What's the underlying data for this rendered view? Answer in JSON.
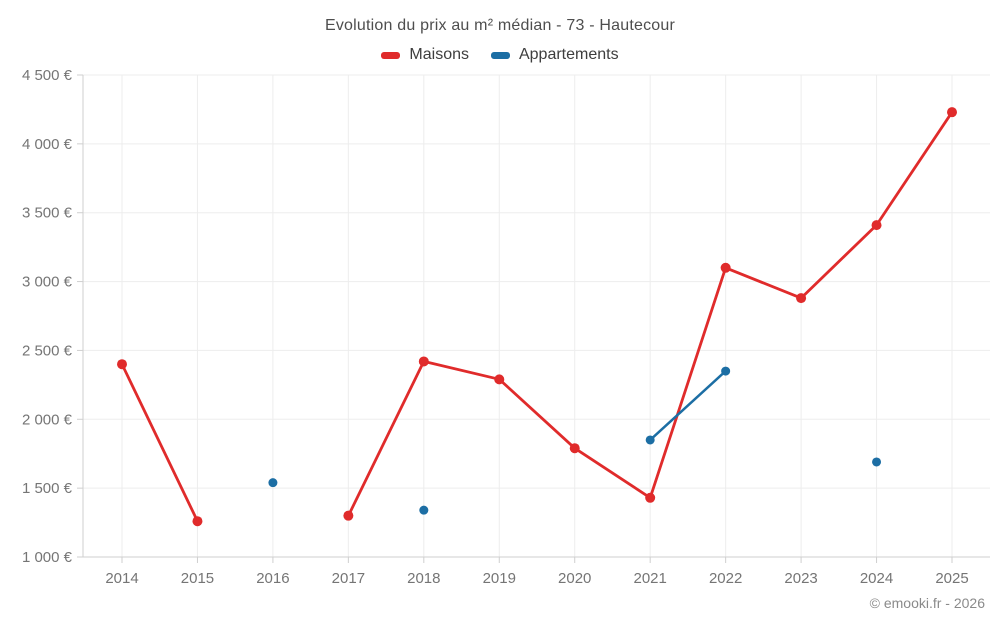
{
  "page": {
    "copyright": "© emooki.fr - 2026"
  },
  "palette": {
    "maisons_red": "#e02b2b",
    "appartements_blue": "#1c6ea4",
    "grid_line": "#ededed",
    "axis_line": "#cfcfcf",
    "tick_label": "#757575",
    "title_text": "#4e4e4e",
    "legend_text": "#3e3e3e",
    "copyright_text": "#8a8a8a"
  },
  "chart_data": {
    "type": "line",
    "title": "Evolution du prix au m² médian - 73 - Hautecour",
    "xlabel": "",
    "ylabel": "",
    "categories": [
      "2014",
      "2015",
      "2016",
      "2017",
      "2018",
      "2019",
      "2020",
      "2021",
      "2022",
      "2023",
      "2024",
      "2025"
    ],
    "series": [
      {
        "name": "Maisons",
        "color": "#e02b2b",
        "line_width": 2.8,
        "marker_radius": 5,
        "values": [
          2400,
          1260,
          null,
          1300,
          2420,
          2290,
          1790,
          1430,
          3100,
          2880,
          3410,
          4230
        ]
      },
      {
        "name": "Appartements",
        "color": "#1c6ea4",
        "line_width": 2.5,
        "marker_radius": 4.5,
        "values": [
          null,
          null,
          1540,
          null,
          1340,
          null,
          null,
          1850,
          2350,
          null,
          1690,
          null
        ]
      }
    ],
    "ylim": [
      1000,
      4500
    ],
    "yticks": [
      {
        "value": 1000,
        "label": "1 000 €"
      },
      {
        "value": 1500,
        "label": "1 500 €"
      },
      {
        "value": 2000,
        "label": "2 000 €"
      },
      {
        "value": 2500,
        "label": "2 500 €"
      },
      {
        "value": 3000,
        "label": "3 000 €"
      },
      {
        "value": 3500,
        "label": "3 500 €"
      },
      {
        "value": 4000,
        "label": "4 000 €"
      },
      {
        "value": 4500,
        "label": "4 500 €"
      }
    ],
    "grid": true,
    "legend_position": "top"
  }
}
